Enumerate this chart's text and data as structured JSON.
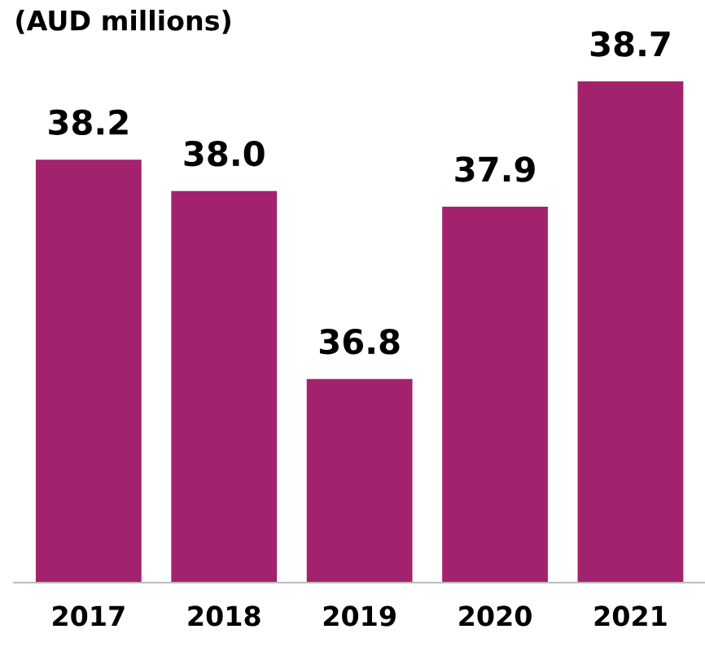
{
  "chart_data": {
    "type": "bar",
    "title": "(AUD millions)",
    "categories": [
      "2017",
      "2018",
      "2019",
      "2020",
      "2021"
    ],
    "values": [
      38.2,
      38.0,
      36.8,
      37.9,
      38.7
    ],
    "color": "#a3226e",
    "ylim": [
      35.5,
      38.7
    ],
    "value_labels": [
      "38.2",
      "38.0",
      "36.8",
      "37.9",
      "38.7"
    ],
    "grid": false,
    "tick_labels": "x"
  }
}
